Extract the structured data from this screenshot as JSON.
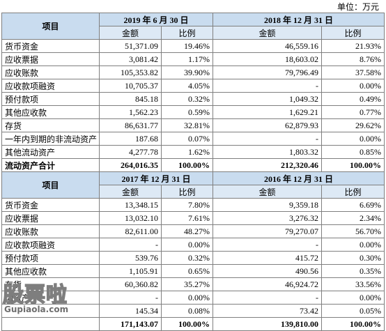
{
  "unit": "单位：万元",
  "header_item": "项目",
  "col_amount": "金额",
  "col_ratio": "比例",
  "section1": {
    "period_a": "2019 年 6 月 30 日",
    "period_b": "2018 年 12 月 31 日",
    "rows": [
      [
        "货币资金",
        "51,371.09",
        "19.46%",
        "46,559.16",
        "21.93%"
      ],
      [
        "应收票据",
        "3,081.42",
        "1.17%",
        "18,603.02",
        "8.76%"
      ],
      [
        "应收账款",
        "105,353.82",
        "39.90%",
        "79,796.49",
        "37.58%"
      ],
      [
        "应收款项融资",
        "10,705.37",
        "4.05%",
        "-",
        "0.00%"
      ],
      [
        "预付款项",
        "845.18",
        "0.32%",
        "1,049.32",
        "0.49%"
      ],
      [
        "其他应收款",
        "1,562.23",
        "0.59%",
        "1,629.21",
        "0.77%"
      ],
      [
        "存货",
        "86,631.77",
        "32.81%",
        "62,879.93",
        "29.62%"
      ],
      [
        "一年内到期的非流动资产",
        "187.68",
        "0.07%",
        "-",
        "0.00%"
      ],
      [
        "其他流动资产",
        "4,277.78",
        "1.62%",
        "1,803.32",
        "0.85%"
      ]
    ],
    "total": [
      "流动资产合计",
      "264,016.35",
      "100.00%",
      "212,320.46",
      "100.00%"
    ]
  },
  "section2": {
    "period_a": "2017 年 12 月 31 日",
    "period_b": "2016 年 12 月 31 日",
    "rows": [
      [
        "货币资金",
        "13,348.15",
        "7.80%",
        "9,359.18",
        "6.69%"
      ],
      [
        "应收票据",
        "13,032.10",
        "7.61%",
        "3,276.32",
        "2.34%"
      ],
      [
        "应收账款",
        "82,611.00",
        "48.27%",
        "79,270.07",
        "56.70%"
      ],
      [
        "应收款项融资",
        "-",
        "0.00%",
        "-",
        "0.00%"
      ],
      [
        "预付款项",
        "539.76",
        "0.32%",
        "415.72",
        "0.30%"
      ],
      [
        "其他应收款",
        "1,105.91",
        "0.65%",
        "490.56",
        "0.35%"
      ],
      [
        "存货",
        "60,360.82",
        "35.27%",
        "46,924.72",
        "33.56%"
      ],
      [
        "动资产",
        "-",
        "0.00%",
        "-",
        "0.00%"
      ],
      [
        "",
        "145.34",
        "0.08%",
        "73.42",
        "0.05%"
      ]
    ],
    "total": [
      "",
      "171,143.07",
      "100.00%",
      "139,810.00",
      "100.00%"
    ]
  },
  "watermark": {
    "main": "股票啦",
    "sub": "Gupiaola.com"
  }
}
